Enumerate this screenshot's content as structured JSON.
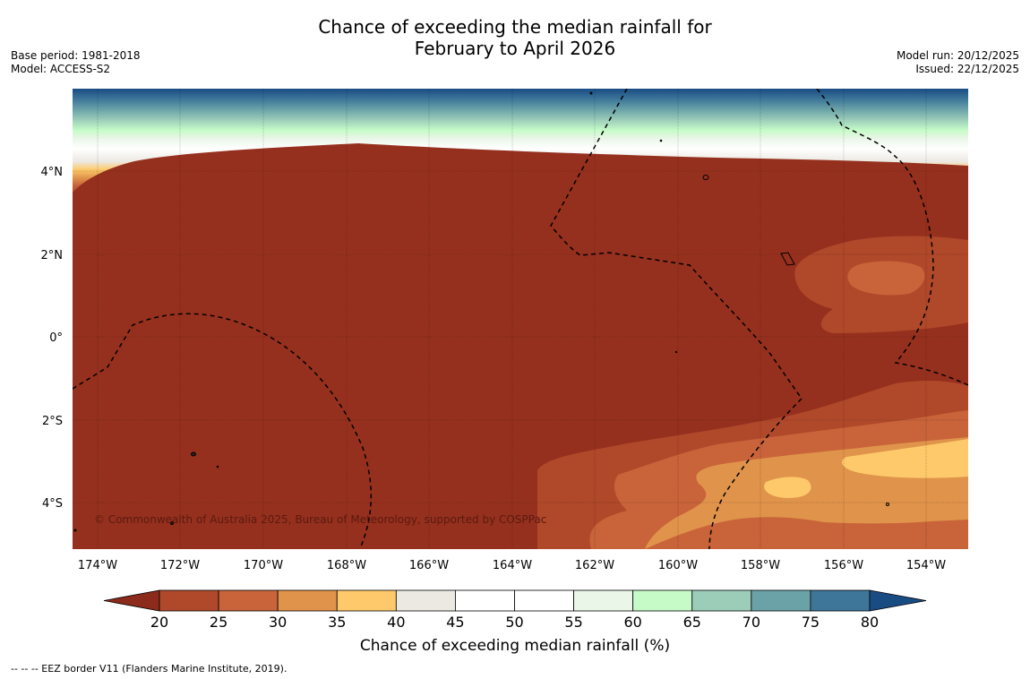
{
  "title_line1": "Chance of exceeding the median rainfall for",
  "title_line2": "February to April 2026",
  "meta_left": {
    "base_period": "Base period: 1981-2018",
    "model": "Model: ACCESS-S2"
  },
  "meta_right": {
    "model_run": "Model run: 20/12/2025",
    "issued": "Issued: 22/12/2025"
  },
  "map": {
    "lon_labels": [
      "174°W",
      "172°W",
      "170°W",
      "168°W",
      "166°W",
      "164°W",
      "162°W",
      "160°W",
      "158°W",
      "156°W",
      "154°W"
    ],
    "lat_labels": [
      "4°N",
      "2°N",
      "0°",
      "2°S",
      "4°S"
    ],
    "copyright": "© Commonwealth of Australia 2025, Bureau of Meteorology, supported by COSPPac"
  },
  "colorbar": {
    "ticks": [
      "20",
      "25",
      "30",
      "35",
      "40",
      "45",
      "50",
      "55",
      "60",
      "65",
      "70",
      "75",
      "80"
    ],
    "colors": [
      "#8c2a1c",
      "#b0482a",
      "#c8633a",
      "#e0934a",
      "#fdc96a",
      "#ece9e3",
      "#ffffff",
      "#ffffff",
      "#eaf6e8",
      "#c6fbc8",
      "#9bcdb9",
      "#6aa2a8",
      "#3d7699",
      "#1a4c84"
    ],
    "label": "Chance of exceeding median rainfall (%)"
  },
  "footnote": "--  --  -- EEZ border V11 (Flanders Marine Institute, 2019)."
}
